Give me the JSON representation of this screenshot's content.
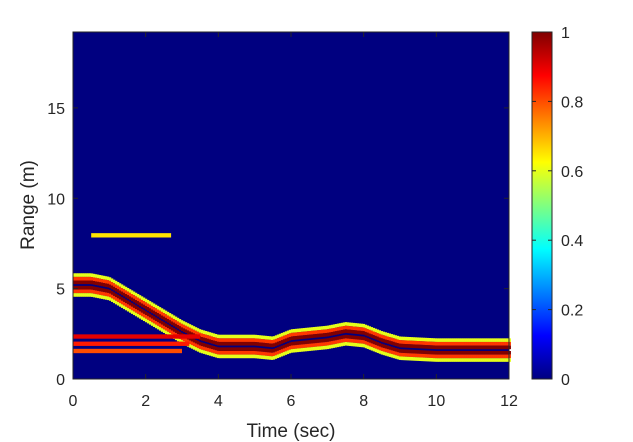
{
  "chart_data": {
    "type": "heatmap",
    "title": "",
    "xlabel": "Time (sec)",
    "ylabel": "Range (m)",
    "xlim": [
      0,
      12
    ],
    "ylim": [
      0,
      19.2
    ],
    "x_ticks": [
      "0",
      "2",
      "4",
      "6",
      "8",
      "10",
      "12"
    ],
    "y_ticks": [
      "0",
      "5",
      "10",
      "15"
    ],
    "colorbar": {
      "colormap": "jet",
      "range": [
        0,
        1
      ],
      "ticks": [
        "0",
        "0.2",
        "0.4",
        "0.6",
        "0.8",
        "1"
      ]
    },
    "background_value": 0,
    "series": [
      {
        "name": "target-track",
        "points_time_range": [
          [
            0,
            5.2
          ],
          [
            0.5,
            5.2
          ],
          [
            1.0,
            5.0
          ],
          [
            1.5,
            4.4
          ],
          [
            2.0,
            3.8
          ],
          [
            2.5,
            3.2
          ],
          [
            3.0,
            2.6
          ],
          [
            3.5,
            2.1
          ],
          [
            4.0,
            1.8
          ],
          [
            5.0,
            1.8
          ],
          [
            5.5,
            1.7
          ],
          [
            6.0,
            2.1
          ],
          [
            6.5,
            2.2
          ],
          [
            7.0,
            2.3
          ],
          [
            7.5,
            2.5
          ],
          [
            8.0,
            2.4
          ],
          [
            8.5,
            2.0
          ],
          [
            9.0,
            1.7
          ],
          [
            10.0,
            1.6
          ],
          [
            11.0,
            1.6
          ],
          [
            12.0,
            1.6
          ]
        ],
        "intensity": 1
      },
      {
        "name": "static-band-upper",
        "time_span": [
          0,
          3.5
        ],
        "range": 2.35,
        "intensity": 0.9
      },
      {
        "name": "static-band-mid",
        "time_span": [
          0,
          3.2
        ],
        "range": 1.95,
        "intensity": 0.85
      },
      {
        "name": "static-band-lower",
        "time_span": [
          0,
          3.0
        ],
        "range": 1.55,
        "intensity": 0.8
      },
      {
        "name": "sparse-return",
        "time_span": [
          0.5,
          2.7
        ],
        "range": 7.95,
        "intensity": 0.65
      }
    ]
  }
}
